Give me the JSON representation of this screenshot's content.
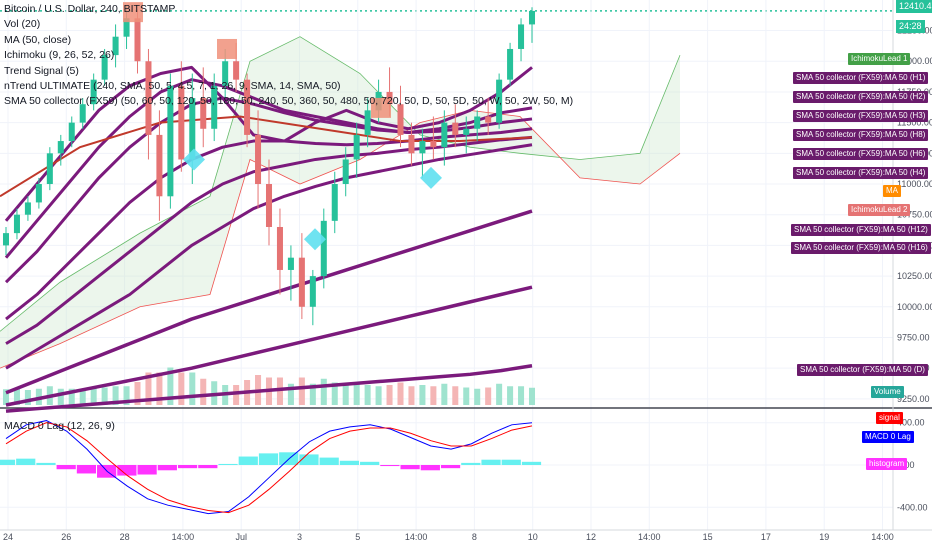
{
  "legend": {
    "symbol": "Bitcoin / U.S. Dollar, 240, BITSTAMP",
    "lines": [
      "Vol (20)",
      "MA (50, close)",
      "Ichimoku (9, 26, 52, 26)",
      "Trend Signal (5)",
      "nTrend ULTIMATE (240, SMA, 50, 5, 4.5, 7, 1, 26, 9, SMA, 14, SMA, 50)",
      "SMA 50 collector (FX59) (50, 60, 50, 120, 50, 180, 50, 240, 50, 360, 50, 480, 50, 720, 50, D, 50, 5D, 50, W, 50, 2W, 50, M)"
    ]
  },
  "macd_legend": "MACD 0 Lag (12, 26, 9)",
  "price_axis": {
    "ticks": [
      "12250.00",
      "12000.00",
      "11750.00",
      "11500.00",
      "11250.00",
      "11000.00",
      "10750.00",
      "10500.00",
      "10250.00",
      "10000.00",
      "9750.00",
      "9500.00",
      "9250.00"
    ],
    "current_price": "12410.47",
    "countdown": "24:28"
  },
  "macd_axis": {
    "ticks": [
      "400.00",
      "0.00",
      "-400.00"
    ]
  },
  "time_axis": {
    "labels": [
      "24",
      "26",
      "28",
      "14:00",
      "Jul",
      "3",
      "5",
      "14:00",
      "8",
      "10",
      "12",
      "14:00",
      "15",
      "17",
      "19",
      "14:00"
    ]
  },
  "tags": {
    "ichimoku_lead1": "IchimokuLead 1",
    "sma_h1": "SMA 50 collector (FX59):MA 50 (H1)",
    "sma_h2": "SMA 50 collector (FX59):MA 50 (H2)",
    "sma_h3": "SMA 50 collector (FX59):MA 50 (H3)",
    "sma_h8": "SMA 50 collector (FX59):MA 50 (H8)",
    "sma_h6": "SMA 50 collector (FX59):MA 50 (H6)",
    "sma_h4": "SMA 50 collector (FX59):MA 50 (H4)",
    "ma": "MA",
    "ichimoku_lead2": "IchimokuLead 2",
    "sma_h12": "SMA 50 collector (FX59):MA 50 (H12)",
    "sma_h16": "SMA 50 collector (FX59):MA 50 (H16)",
    "sma_d": "SMA 50 collector (FX59):MA 50 (D)",
    "volume": "Volume",
    "signal": "signal",
    "macd": "MACD 0 Lag",
    "histogram": "histogram"
  },
  "colors": {
    "up": "#26c19a",
    "down": "#e57373",
    "purple": "#7b1a7c",
    "ma_red": "#c0392b",
    "signal": "#ff0000",
    "macd": "#0000ff",
    "histogram": "#ff33ff"
  },
  "chart_data": {
    "type": "candlestick",
    "price_range": [
      9200,
      12450
    ],
    "macd_range": [
      -520,
      520
    ],
    "candles": [
      {
        "o": 10500,
        "h": 10650,
        "l": 10420,
        "c": 10600
      },
      {
        "o": 10600,
        "h": 10800,
        "l": 10550,
        "c": 10750
      },
      {
        "o": 10750,
        "h": 10900,
        "l": 10700,
        "c": 10850
      },
      {
        "o": 10850,
        "h": 11050,
        "l": 10800,
        "c": 11000
      },
      {
        "o": 11000,
        "h": 11300,
        "l": 10950,
        "c": 11250
      },
      {
        "o": 11250,
        "h": 11400,
        "l": 11150,
        "c": 11350
      },
      {
        "o": 11350,
        "h": 11550,
        "l": 11300,
        "c": 11500
      },
      {
        "o": 11500,
        "h": 11700,
        "l": 11450,
        "c": 11650
      },
      {
        "o": 11650,
        "h": 11900,
        "l": 11600,
        "c": 11850
      },
      {
        "o": 11850,
        "h": 12100,
        "l": 11800,
        "c": 12050
      },
      {
        "o": 12050,
        "h": 12300,
        "l": 11950,
        "c": 12200
      },
      {
        "o": 12200,
        "h": 12450,
        "l": 12100,
        "c": 12350
      },
      {
        "o": 12350,
        "h": 12420,
        "l": 11900,
        "c": 12000
      },
      {
        "o": 12000,
        "h": 12100,
        "l": 11200,
        "c": 11400
      },
      {
        "o": 11400,
        "h": 11600,
        "l": 10700,
        "c": 10900
      },
      {
        "o": 10900,
        "h": 11900,
        "l": 10800,
        "c": 11800
      },
      {
        "o": 11800,
        "h": 12000,
        "l": 11100,
        "c": 11200
      },
      {
        "o": 11200,
        "h": 11900,
        "l": 11000,
        "c": 11700
      },
      {
        "o": 11700,
        "h": 11950,
        "l": 11300,
        "c": 11450
      },
      {
        "o": 11450,
        "h": 11900,
        "l": 11350,
        "c": 11800
      },
      {
        "o": 11800,
        "h": 12100,
        "l": 11700,
        "c": 12000
      },
      {
        "o": 12000,
        "h": 12150,
        "l": 11750,
        "c": 11850
      },
      {
        "o": 11850,
        "h": 11900,
        "l": 11300,
        "c": 11400
      },
      {
        "o": 11400,
        "h": 11600,
        "l": 10800,
        "c": 11000
      },
      {
        "o": 11000,
        "h": 11200,
        "l": 10500,
        "c": 10650
      },
      {
        "o": 10650,
        "h": 10800,
        "l": 10100,
        "c": 10300
      },
      {
        "o": 10300,
        "h": 10500,
        "l": 10050,
        "c": 10400
      },
      {
        "o": 10400,
        "h": 10600,
        "l": 9900,
        "c": 10000
      },
      {
        "o": 10000,
        "h": 10300,
        "l": 9850,
        "c": 10250
      },
      {
        "o": 10250,
        "h": 10800,
        "l": 10150,
        "c": 10700
      },
      {
        "o": 10700,
        "h": 11100,
        "l": 10600,
        "c": 11000
      },
      {
        "o": 11000,
        "h": 11300,
        "l": 10900,
        "c": 11200
      },
      {
        "o": 11200,
        "h": 11500,
        "l": 11050,
        "c": 11400
      },
      {
        "o": 11400,
        "h": 11700,
        "l": 11300,
        "c": 11600
      },
      {
        "o": 11600,
        "h": 11850,
        "l": 11500,
        "c": 11750
      },
      {
        "o": 11750,
        "h": 11950,
        "l": 11550,
        "c": 11650
      },
      {
        "o": 11650,
        "h": 11800,
        "l": 11300,
        "c": 11400
      },
      {
        "o": 11400,
        "h": 11500,
        "l": 11150,
        "c": 11250
      },
      {
        "o": 11250,
        "h": 11450,
        "l": 11050,
        "c": 11350
      },
      {
        "o": 11350,
        "h": 11550,
        "l": 11200,
        "c": 11300
      },
      {
        "o": 11300,
        "h": 11600,
        "l": 11150,
        "c": 11500
      },
      {
        "o": 11500,
        "h": 11650,
        "l": 11300,
        "c": 11400
      },
      {
        "o": 11400,
        "h": 11550,
        "l": 11250,
        "c": 11450
      },
      {
        "o": 11450,
        "h": 11600,
        "l": 11350,
        "c": 11550
      },
      {
        "o": 11550,
        "h": 11700,
        "l": 11400,
        "c": 11500
      },
      {
        "o": 11500,
        "h": 11900,
        "l": 11450,
        "c": 11850
      },
      {
        "o": 11850,
        "h": 12150,
        "l": 11800,
        "c": 12100
      },
      {
        "o": 12100,
        "h": 12350,
        "l": 12000,
        "c": 12300
      },
      {
        "o": 12300,
        "h": 12440,
        "l": 12150,
        "c": 12410
      }
    ],
    "moving_averages": [
      {
        "name": "MA 50 (H1)",
        "values": [
          10700,
          11000,
          11300,
          11600,
          11800,
          11900,
          11950,
          11700,
          11400,
          11350,
          11500,
          11600,
          11500,
          11450,
          11500,
          11600,
          11750,
          11950
        ]
      },
      {
        "name": "MA 50 (H2)",
        "values": [
          10400,
          10700,
          11000,
          11300,
          11550,
          11750,
          11850,
          11800,
          11700,
          11600,
          11550,
          11500,
          11450,
          11420,
          11450,
          11500,
          11580,
          11620
        ]
      },
      {
        "name": "MA 50 (H3)",
        "values": [
          10200,
          10450,
          10750,
          11050,
          11300,
          11500,
          11650,
          11700,
          11650,
          11580,
          11520,
          11480,
          11440,
          11420,
          11430,
          11460,
          11500,
          11530
        ]
      },
      {
        "name": "MA 50 (H4)",
        "values": [
          9900,
          10100,
          10350,
          10600,
          10850,
          11050,
          11200,
          11300,
          11350,
          11350,
          11330,
          11320,
          11330,
          11350,
          11380,
          11400,
          11420,
          11450
        ]
      },
      {
        "name": "MA 50 (H6)",
        "values": [
          9700,
          9850,
          10050,
          10250,
          10450,
          10650,
          10850,
          11000,
          11100,
          11150,
          11200,
          11230,
          11250,
          11280,
          11300,
          11330,
          11360,
          11380
        ]
      },
      {
        "name": "MA 50 (H8)",
        "values": [
          9500,
          9650,
          9800,
          9950,
          10100,
          10300,
          10500,
          10650,
          10800,
          10900,
          10980,
          11050,
          11100,
          11150,
          11200,
          11240,
          11280,
          11320
        ]
      },
      {
        "name": "MA 50 (H12)",
        "values": [
          9300,
          9400,
          9500,
          9600,
          9700,
          9800,
          9900,
          9980,
          10060,
          10140,
          10220,
          10300,
          10380,
          10460,
          10540,
          10620,
          10700,
          10780
        ]
      },
      {
        "name": "MA 50 (H16)",
        "values": [
          9200,
          9250,
          9300,
          9350,
          9400,
          9450,
          9500,
          9560,
          9620,
          9680,
          9740,
          9800,
          9860,
          9920,
          9980,
          10040,
          10100,
          10160
        ]
      },
      {
        "name": "MA 50 (D)",
        "values": [
          9150,
          9170,
          9190,
          9210,
          9230,
          9250,
          9270,
          9290,
          9310,
          9330,
          9350,
          9370,
          9390,
          9410,
          9430,
          9450,
          9480,
          9520
        ]
      }
    ],
    "macd": {
      "series": [
        {
          "name": "MACD 0 Lag",
          "values": [
            250,
            380,
            420,
            320,
            150,
            -60,
            -200,
            -320,
            -380,
            -420,
            -460,
            -440,
            -300,
            -120,
            60,
            220,
            320,
            360,
            380,
            340,
            260,
            180,
            150,
            200,
            300,
            380,
            400
          ]
        },
        {
          "name": "signal",
          "values": [
            200,
            320,
            400,
            360,
            230,
            60,
            -100,
            -230,
            -330,
            -390,
            -430,
            -450,
            -380,
            -230,
            -60,
            120,
            250,
            320,
            350,
            350,
            300,
            230,
            180,
            180,
            250,
            330,
            370
          ]
        }
      ],
      "histogram": [
        50,
        60,
        20,
        -40,
        -80,
        -120,
        -100,
        -90,
        -50,
        -30,
        -30,
        10,
        80,
        110,
        120,
        100,
        70,
        40,
        30,
        -10,
        -40,
        -50,
        -30,
        20,
        50,
        50,
        30
      ]
    }
  }
}
